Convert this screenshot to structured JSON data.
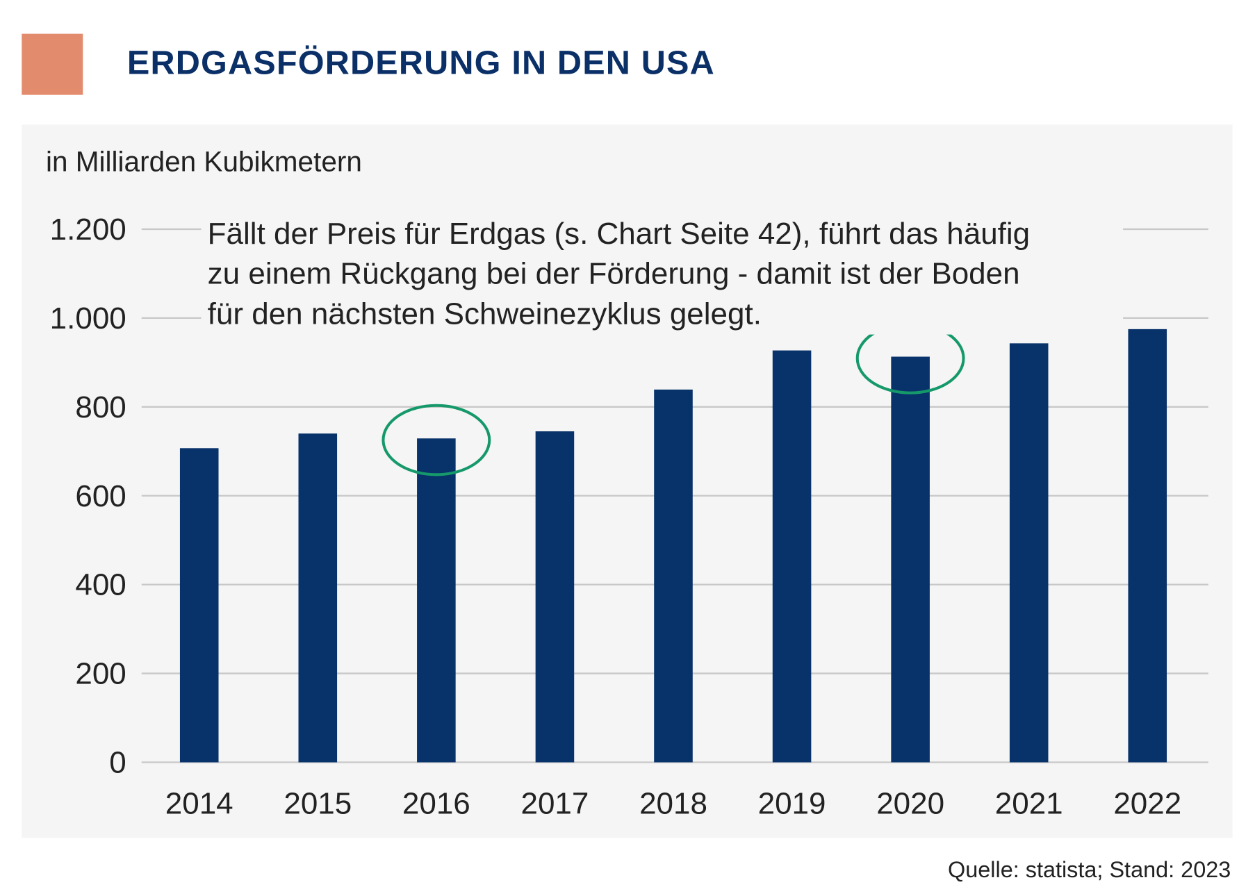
{
  "header": {
    "title": "ERDGASFÖRDERUNG IN DEN USA",
    "accent_color": "#E38B6D",
    "title_color": "#0B3068"
  },
  "chart_data": {
    "type": "bar",
    "title": "ERDGASFÖRDERUNG IN DEN USA",
    "ylabel": "in Milliarden Kubikmetern",
    "xlabel": "",
    "categories": [
      "2014",
      "2015",
      "2016",
      "2017",
      "2018",
      "2019",
      "2020",
      "2021",
      "2022"
    ],
    "values": [
      707,
      740,
      729,
      745,
      839,
      927,
      913,
      943,
      975
    ],
    "ylim": [
      0,
      1200
    ],
    "yticks": [
      0,
      200,
      400,
      600,
      800,
      1000,
      1200
    ],
    "ytick_labels": [
      "0",
      "200",
      "400",
      "600",
      "800",
      "1.000",
      "1.200"
    ],
    "grid": true,
    "bar_color": "#08326A",
    "highlight_color": "#16996A",
    "highlighted_categories": [
      "2016",
      "2020"
    ],
    "annotation_lines": [
      "Fällt der Preis für Erdgas (s. Chart Seite 42), führt das häufig",
      "zu einem Rückgang bei der Förderung - damit ist der Boden",
      "für den nächsten Schweinezyklus gelegt."
    ]
  },
  "footer": {
    "source": "Quelle: statista; Stand: 2023"
  }
}
